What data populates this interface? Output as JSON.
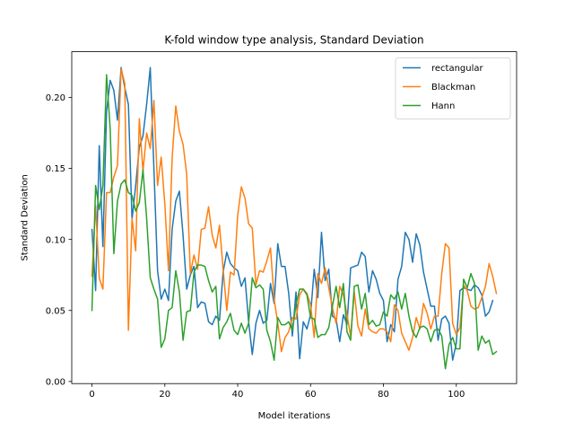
{
  "chart_data": {
    "type": "line",
    "title": "K-fold window type analysis, Standard Deviation",
    "xlabel": "Model iterations",
    "ylabel": "Standard Deviation",
    "xlim": [
      -5.55,
      116.55
    ],
    "ylim": [
      -0.0015,
      0.2322
    ],
    "xticks": [
      0,
      20,
      40,
      60,
      80,
      100
    ],
    "yticks": [
      0.0,
      0.05,
      0.1,
      0.15,
      0.2
    ],
    "ytick_labels": [
      "0.00",
      "0.05",
      "0.10",
      "0.15",
      "0.20"
    ],
    "grid": false,
    "legend": "top-right",
    "series": [
      {
        "name": "rectangular",
        "color": "#1f77b4",
        "values": [
          0.107,
          0.064,
          0.166,
          0.095,
          0.19,
          0.212,
          0.205,
          0.184,
          0.221,
          0.207,
          0.195,
          0.114,
          0.138,
          0.165,
          0.173,
          0.195,
          0.221,
          0.15,
          0.078,
          0.058,
          0.065,
          0.057,
          0.107,
          0.127,
          0.134,
          0.103,
          0.065,
          0.075,
          0.081,
          0.052,
          0.056,
          0.055,
          0.042,
          0.04,
          0.046,
          0.043,
          0.077,
          0.091,
          0.083,
          0.08,
          0.078,
          0.067,
          0.073,
          0.042,
          0.019,
          0.041,
          0.05,
          0.041,
          0.043,
          0.069,
          0.055,
          0.097,
          0.081,
          0.081,
          0.062,
          0.032,
          0.063,
          0.016,
          0.042,
          0.037,
          0.047,
          0.079,
          0.059,
          0.105,
          0.071,
          0.079,
          0.046,
          0.044,
          0.028,
          0.047,
          0.04,
          0.08,
          0.081,
          0.082,
          0.091,
          0.088,
          0.063,
          0.078,
          0.072,
          0.062,
          0.057,
          0.028,
          0.04,
          0.035,
          0.072,
          0.081,
          0.105,
          0.1,
          0.084,
          0.104,
          0.096,
          0.077,
          0.065,
          0.053,
          0.053,
          0.029,
          0.044,
          0.046,
          0.041,
          0.015,
          0.027,
          0.064,
          0.066,
          0.065,
          0.064,
          0.068,
          0.066,
          0.061,
          0.046,
          0.049,
          0.057
        ]
      },
      {
        "name": "Blackman",
        "color": "#ff7f0e",
        "values": [
          0.074,
          0.124,
          0.073,
          0.065,
          0.133,
          0.133,
          0.144,
          0.152,
          0.22,
          0.21,
          0.036,
          0.115,
          0.092,
          0.185,
          0.148,
          0.175,
          0.164,
          0.198,
          0.138,
          0.158,
          0.125,
          0.078,
          0.157,
          0.194,
          0.176,
          0.167,
          0.146,
          0.076,
          0.089,
          0.079,
          0.107,
          0.108,
          0.123,
          0.103,
          0.094,
          0.11,
          0.079,
          0.05,
          0.077,
          0.075,
          0.117,
          0.137,
          0.129,
          0.111,
          0.108,
          0.068,
          0.078,
          0.077,
          0.085,
          0.094,
          0.058,
          0.041,
          0.021,
          0.031,
          0.035,
          0.045,
          0.044,
          0.061,
          0.065,
          0.062,
          0.054,
          0.031,
          0.076,
          0.069,
          0.08,
          0.066,
          0.052,
          0.041,
          0.067,
          0.061,
          0.047,
          0.032,
          0.063,
          0.039,
          0.032,
          0.051,
          0.037,
          0.035,
          0.034,
          0.037,
          0.037,
          0.035,
          0.028,
          0.054,
          0.05,
          0.034,
          0.028,
          0.022,
          0.031,
          0.045,
          0.037,
          0.055,
          0.048,
          0.037,
          0.046,
          0.046,
          0.076,
          0.097,
          0.094,
          0.041,
          0.033,
          0.038,
          0.068,
          0.064,
          0.053,
          0.051,
          0.052,
          0.059,
          0.067,
          0.083,
          0.074,
          0.062
        ]
      },
      {
        "name": "Hann",
        "color": "#2ca02c",
        "values": [
          0.05,
          0.138,
          0.121,
          0.138,
          0.216,
          0.178,
          0.09,
          0.127,
          0.139,
          0.142,
          0.133,
          0.131,
          0.12,
          0.126,
          0.149,
          0.115,
          0.073,
          0.065,
          0.058,
          0.024,
          0.03,
          0.05,
          0.052,
          0.078,
          0.063,
          0.029,
          0.049,
          0.05,
          0.077,
          0.082,
          0.082,
          0.081,
          0.071,
          0.063,
          0.067,
          0.03,
          0.038,
          0.042,
          0.048,
          0.036,
          0.033,
          0.041,
          0.034,
          0.041,
          0.073,
          0.066,
          0.068,
          0.065,
          0.036,
          0.028,
          0.015,
          0.045,
          0.04,
          0.04,
          0.042,
          0.036,
          0.054,
          0.065,
          0.065,
          0.061,
          0.045,
          0.044,
          0.031,
          0.033,
          0.033,
          0.038,
          0.053,
          0.067,
          0.052,
          0.069,
          0.035,
          0.029,
          0.067,
          0.068,
          0.051,
          0.062,
          0.04,
          0.043,
          0.039,
          0.04,
          0.049,
          0.046,
          0.061,
          0.058,
          0.063,
          0.051,
          0.062,
          0.046,
          0.035,
          0.031,
          0.038,
          0.039,
          0.037,
          0.028,
          0.036,
          0.037,
          0.032,
          0.009,
          0.026,
          0.031,
          0.023,
          0.023,
          0.072,
          0.066,
          0.076,
          0.069,
          0.022,
          0.032,
          0.027,
          0.029,
          0.019,
          0.021
        ]
      }
    ]
  }
}
